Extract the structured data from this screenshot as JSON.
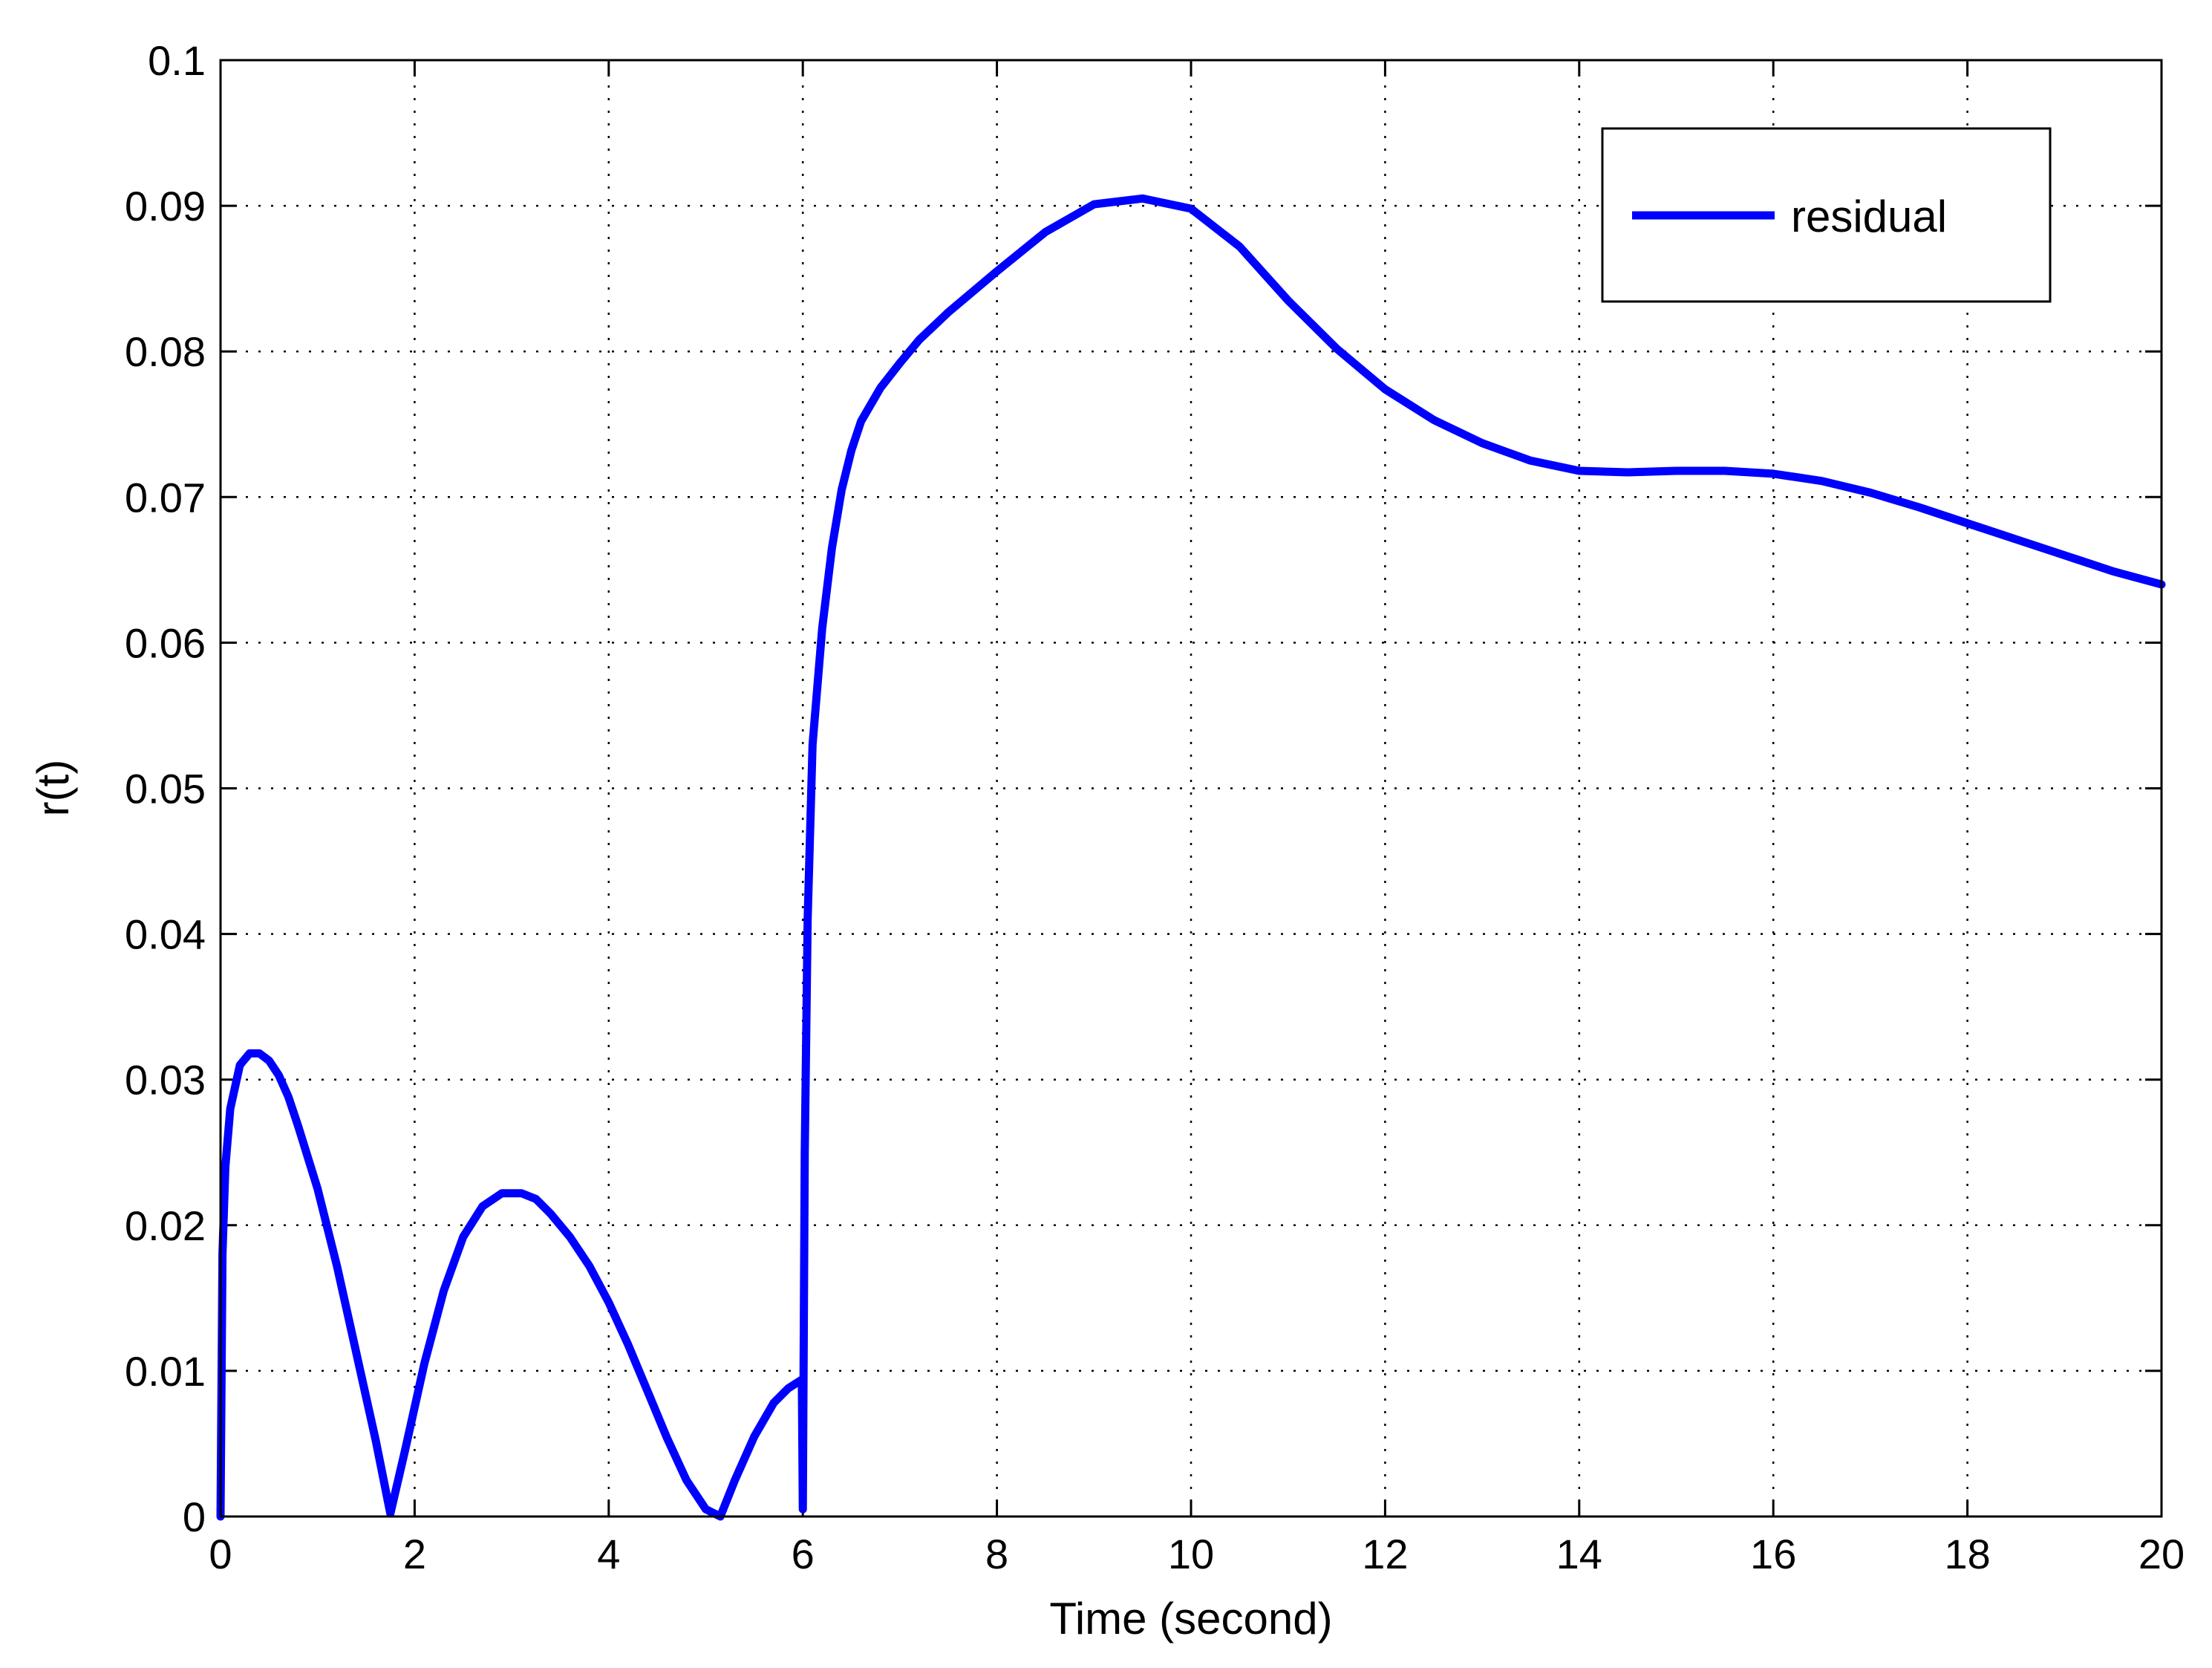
{
  "chart_data": {
    "type": "line",
    "title": "",
    "xlabel": "Time (second)",
    "ylabel": "r(t)",
    "xlim": [
      0,
      20
    ],
    "ylim": [
      0,
      0.1
    ],
    "xticks": [
      0,
      2,
      4,
      6,
      8,
      10,
      12,
      14,
      16,
      18,
      20
    ],
    "xtick_labels": [
      "0",
      "2",
      "4",
      "6",
      "8",
      "10",
      "12",
      "14",
      "16",
      "18",
      "20"
    ],
    "yticks": [
      0,
      0.01,
      0.02,
      0.03,
      0.04,
      0.05,
      0.06,
      0.07,
      0.08,
      0.09,
      0.1
    ],
    "ytick_labels": [
      "0",
      "0.01",
      "0.02",
      "0.03",
      "0.04",
      "0.05",
      "0.06",
      "0.07",
      "0.08",
      "0.09",
      "0.1"
    ],
    "grid": true,
    "legend_position": "top-right",
    "colors": {
      "series": "#0000ff",
      "axes": "#000000",
      "grid": "#000000"
    },
    "series": [
      {
        "name": "residual",
        "x": [
          0,
          0.02,
          0.05,
          0.1,
          0.2,
          0.3,
          0.4,
          0.5,
          0.6,
          0.7,
          0.8,
          1.0,
          1.2,
          1.4,
          1.6,
          1.75,
          1.9,
          2.1,
          2.3,
          2.5,
          2.7,
          2.9,
          3.1,
          3.25,
          3.4,
          3.6,
          3.8,
          4.0,
          4.2,
          4.4,
          4.6,
          4.8,
          5.0,
          5.15,
          5.3,
          5.5,
          5.7,
          5.85,
          5.99,
          6.0,
          6.02,
          6.05,
          6.1,
          6.2,
          6.3,
          6.4,
          6.5,
          6.6,
          6.8,
          7.0,
          7.2,
          7.5,
          8.0,
          8.5,
          9.0,
          9.5,
          10.0,
          10.5,
          11.0,
          11.5,
          12.0,
          12.5,
          13.0,
          13.5,
          14.0,
          14.5,
          15.0,
          15.5,
          16.0,
          16.5,
          17.0,
          17.5,
          18.0,
          18.5,
          19.0,
          19.5,
          20.0
        ],
        "y": [
          0,
          0.018,
          0.024,
          0.028,
          0.031,
          0.0318,
          0.0318,
          0.0313,
          0.0303,
          0.0288,
          0.0268,
          0.0225,
          0.0172,
          0.0112,
          0.0052,
          0.0002,
          0.0045,
          0.0105,
          0.0155,
          0.0192,
          0.0213,
          0.0222,
          0.0222,
          0.0218,
          0.0208,
          0.0192,
          0.0172,
          0.0147,
          0.0118,
          0.0086,
          0.0054,
          0.0025,
          0.0005,
          0,
          0.0025,
          0.0055,
          0.0078,
          0.0088,
          0.0094,
          0.0005,
          0.025,
          0.041,
          0.053,
          0.061,
          0.0665,
          0.0705,
          0.0732,
          0.0752,
          0.0775,
          0.0792,
          0.0808,
          0.0827,
          0.0855,
          0.0882,
          0.0901,
          0.0905,
          0.0898,
          0.0872,
          0.0835,
          0.0802,
          0.0774,
          0.0753,
          0.0737,
          0.0725,
          0.0718,
          0.0717,
          0.0718,
          0.0718,
          0.0716,
          0.0711,
          0.0703,
          0.0693,
          0.0682,
          0.0671,
          0.066,
          0.0649,
          0.064
        ]
      }
    ]
  }
}
